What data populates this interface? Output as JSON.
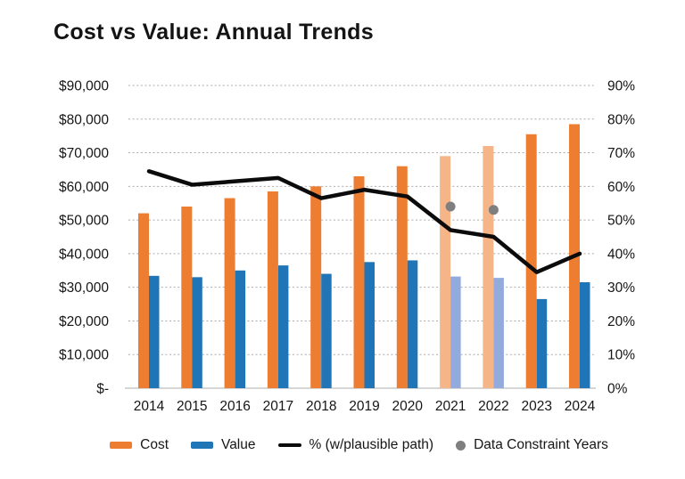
{
  "title": "Cost vs Value: Annual Trends",
  "legend": {
    "cost": "Cost",
    "value": "Value",
    "pct": "% (w/plausible path)",
    "dots": "Data Constraint Years"
  },
  "colors": {
    "cost": "#ED7D31",
    "value": "#2075B6",
    "cost_faded": "#F6B588",
    "value_faded": "#93AADC",
    "line": "#0B0B0B",
    "dot": "#7F7F7F",
    "grid": "#ABABAB",
    "axis": "#C9C9C9",
    "text": "#161616"
  },
  "chart_data": {
    "type": "bar",
    "title": "Cost vs Value: Annual Trends",
    "categories": [
      "2014",
      "2015",
      "2016",
      "2017",
      "2018",
      "2019",
      "2020",
      "2021",
      "2022",
      "2023",
      "2024"
    ],
    "series": [
      {
        "name": "Cost",
        "type": "bar",
        "axis": "left",
        "values": [
          52000,
          54000,
          56500,
          58500,
          60000,
          63000,
          66000,
          69000,
          72000,
          75500,
          78500
        ]
      },
      {
        "name": "Value",
        "type": "bar",
        "axis": "left",
        "values": [
          33400,
          33000,
          35000,
          36500,
          34000,
          37500,
          38000,
          33200,
          32800,
          26500,
          31500
        ]
      },
      {
        "name": "% (w/plausible path)",
        "type": "line",
        "axis": "right",
        "values": [
          64.5,
          60.5,
          61.5,
          62.5,
          56.5,
          59,
          57,
          47,
          45,
          34.5,
          40
        ]
      }
    ],
    "data_constraint_points": [
      {
        "category": "2021",
        "value": 54
      },
      {
        "category": "2022",
        "value": 53
      }
    ],
    "faded_categories": [
      "2021",
      "2022"
    ],
    "left_axis": {
      "min": 0,
      "max": 90000,
      "ticks": [
        "$90,000",
        "$80,000",
        "$70,000",
        "$60,000",
        "$50,000",
        "$40,000",
        "$30,000",
        "$20,000",
        "$10,000",
        "$-"
      ]
    },
    "right_axis": {
      "min": 0,
      "max": 90,
      "ticks": [
        "90%",
        "80%",
        "70%",
        "60%",
        "50%",
        "40%",
        "30%",
        "20%",
        "10%",
        "0%"
      ]
    },
    "grid": "dotted-horizontal",
    "legend_position": "bottom"
  }
}
